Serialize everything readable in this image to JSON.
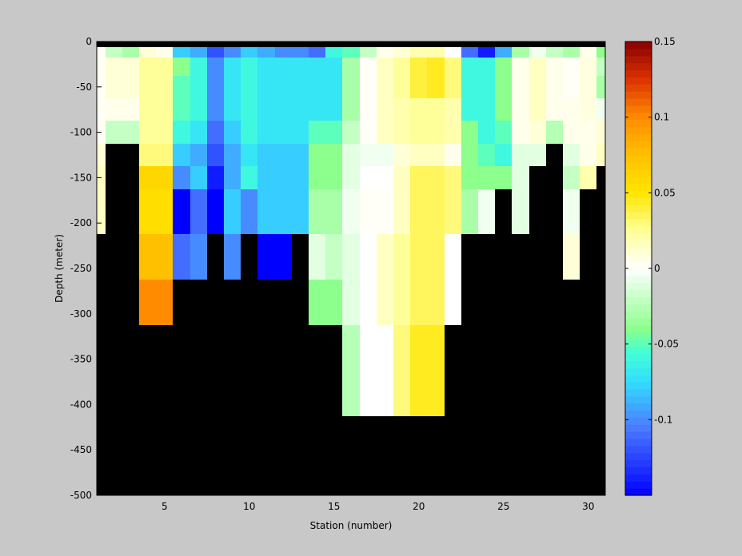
{
  "figure": {
    "background": "#c8c8c8",
    "mask_color": "#000000"
  },
  "chart_data": {
    "type": "heatmap",
    "title": "",
    "xlabel": "Station (number)",
    "ylabel": "Depth (meter)",
    "xlim": [
      1,
      31
    ],
    "ylim": [
      -500,
      0
    ],
    "xticks": [
      5,
      10,
      15,
      20,
      25,
      30
    ],
    "yticks": [
      0,
      -50,
      -100,
      -150,
      -200,
      -250,
      -300,
      -350,
      -400,
      -450,
      -500
    ],
    "grid": false,
    "colorbar": {
      "clim": [
        -0.15,
        0.15
      ],
      "ticks": [
        0.15,
        0.1,
        0.05,
        0,
        -0.05,
        -0.1
      ],
      "tick_labels": [
        "0.15",
        "0.1",
        "0.05",
        "0",
        "-0.05",
        "-0.1"
      ],
      "stops": [
        {
          "v": -0.15,
          "c": "#0000ff"
        },
        {
          "v": -0.105,
          "c": "#4a7bff"
        },
        {
          "v": -0.075,
          "c": "#33ddff"
        },
        {
          "v": -0.055,
          "c": "#44ffd4"
        },
        {
          "v": -0.04,
          "c": "#8cff8c"
        },
        {
          "v": -0.02,
          "c": "#c4ffc4"
        },
        {
          "v": 0.0,
          "c": "#ffffff"
        },
        {
          "v": 0.025,
          "c": "#ffff9a"
        },
        {
          "v": 0.05,
          "c": "#ffe600"
        },
        {
          "v": 0.075,
          "c": "#ffc000"
        },
        {
          "v": 0.1,
          "c": "#ff8c00"
        },
        {
          "v": 0.125,
          "c": "#dd3300"
        },
        {
          "v": 0.15,
          "c": "#880000"
        }
      ]
    },
    "stations": [
      1,
      2,
      3,
      4,
      5,
      6,
      7,
      8,
      9,
      10,
      11,
      12,
      13,
      14,
      15,
      16,
      17,
      18,
      19,
      20,
      21,
      22,
      23,
      24,
      25,
      26,
      27,
      28,
      29,
      30,
      31
    ],
    "depth_bins": [
      -2.5,
      -10,
      -25,
      -50,
      -75,
      -100,
      -125,
      -150,
      -175,
      -200,
      -225,
      -250,
      -275,
      -300,
      -325,
      -350,
      -375,
      -400,
      -425,
      -450,
      -475,
      -500
    ],
    "values": [
      [
        null,
        null,
        null,
        null,
        null,
        null,
        null,
        null,
        null,
        null,
        null,
        null,
        null,
        null,
        null,
        null,
        null,
        null,
        null,
        null,
        null,
        null,
        null,
        null,
        null,
        null,
        null,
        null,
        null,
        null,
        null
      ],
      [
        0.003,
        -0.02,
        -0.03,
        0.01,
        0.005,
        -0.08,
        -0.09,
        -0.12,
        -0.1,
        -0.08,
        -0.09,
        -0.1,
        -0.1,
        -0.11,
        -0.06,
        -0.05,
        -0.02,
        0.005,
        0.01,
        0.02,
        0.02,
        0.0,
        -0.11,
        -0.14,
        -0.09,
        -0.03,
        -0.005,
        -0.02,
        -0.03,
        0.005,
        -0.04
      ],
      [
        0.003,
        0.01,
        0.01,
        0.025,
        0.025,
        -0.04,
        -0.06,
        -0.1,
        -0.07,
        -0.06,
        -0.07,
        -0.07,
        -0.07,
        -0.07,
        -0.07,
        -0.03,
        0.002,
        0.015,
        0.025,
        0.04,
        0.045,
        0.03,
        -0.06,
        -0.06,
        -0.04,
        0.005,
        0.015,
        0.005,
        0.002,
        0.008,
        -0.02
      ],
      [
        0.003,
        0.01,
        0.01,
        0.025,
        0.025,
        -0.05,
        -0.06,
        -0.1,
        -0.07,
        -0.06,
        -0.07,
        -0.07,
        -0.07,
        -0.07,
        -0.07,
        -0.03,
        0.002,
        0.015,
        0.025,
        0.04,
        0.045,
        0.03,
        -0.06,
        -0.06,
        -0.04,
        0.005,
        0.015,
        0.005,
        0.002,
        0.008,
        -0.03
      ],
      [
        0.003,
        0.005,
        0.005,
        0.025,
        0.025,
        -0.05,
        -0.06,
        -0.1,
        -0.07,
        -0.06,
        -0.07,
        -0.07,
        -0.07,
        -0.07,
        -0.07,
        -0.03,
        0.002,
        0.015,
        0.02,
        0.025,
        0.025,
        0.02,
        -0.06,
        -0.06,
        -0.04,
        0.005,
        0.015,
        0.005,
        0.005,
        0.008,
        -0.005
      ],
      [
        0.003,
        -0.02,
        -0.02,
        0.025,
        0.025,
        -0.06,
        -0.07,
        -0.11,
        -0.08,
        -0.06,
        -0.07,
        -0.07,
        -0.07,
        -0.05,
        -0.05,
        -0.02,
        0.002,
        0.015,
        0.02,
        0.025,
        0.025,
        0.02,
        -0.04,
        -0.06,
        -0.05,
        0.005,
        0.01,
        -0.025,
        0.005,
        0.005,
        0.01
      ],
      [
        0.01,
        null,
        null,
        0.03,
        0.03,
        -0.08,
        -0.09,
        -0.12,
        -0.09,
        -0.07,
        -0.08,
        -0.08,
        -0.08,
        -0.04,
        -0.04,
        -0.01,
        -0.005,
        -0.005,
        0.01,
        0.015,
        0.015,
        0.005,
        -0.04,
        -0.05,
        -0.06,
        -0.01,
        -0.01,
        null,
        -0.01,
        0.005,
        0.015
      ],
      [
        0.015,
        null,
        null,
        0.06,
        0.06,
        -0.1,
        -0.08,
        -0.14,
        -0.09,
        -0.06,
        -0.08,
        -0.08,
        -0.08,
        -0.04,
        -0.04,
        -0.01,
        0.0,
        0.0,
        0.015,
        0.035,
        0.035,
        0.03,
        -0.04,
        -0.04,
        -0.04,
        -0.01,
        null,
        null,
        -0.02,
        0.02,
        null
      ],
      [
        0.015,
        null,
        null,
        0.055,
        0.055,
        -0.15,
        -0.11,
        -0.15,
        -0.08,
        -0.1,
        -0.08,
        -0.08,
        -0.08,
        -0.03,
        -0.03,
        -0.005,
        0.002,
        0.002,
        0.015,
        0.035,
        0.035,
        0.03,
        -0.03,
        -0.005,
        null,
        -0.01,
        null,
        null,
        -0.005,
        null,
        null
      ],
      [
        0.015,
        null,
        null,
        0.055,
        0.055,
        -0.15,
        -0.11,
        -0.15,
        -0.08,
        -0.1,
        -0.08,
        -0.08,
        -0.08,
        -0.03,
        -0.03,
        -0.005,
        0.002,
        0.002,
        0.015,
        0.035,
        0.035,
        0.03,
        -0.03,
        -0.005,
        null,
        -0.01,
        null,
        null,
        -0.005,
        null,
        null
      ],
      [
        null,
        null,
        null,
        0.075,
        0.075,
        -0.11,
        -0.1,
        null,
        -0.1,
        null,
        -0.15,
        -0.15,
        null,
        -0.01,
        -0.02,
        -0.01,
        0.0,
        0.015,
        0.025,
        0.035,
        0.035,
        0.0,
        null,
        null,
        null,
        null,
        null,
        null,
        0.01,
        null,
        null
      ],
      [
        null,
        null,
        null,
        0.075,
        0.075,
        -0.11,
        -0.1,
        null,
        -0.1,
        null,
        -0.15,
        -0.15,
        null,
        -0.01,
        -0.02,
        -0.01,
        0.0,
        0.015,
        0.025,
        0.035,
        0.035,
        0.0,
        null,
        null,
        null,
        null,
        null,
        null,
        0.01,
        null,
        null
      ],
      [
        null,
        null,
        null,
        0.1,
        0.1,
        null,
        null,
        null,
        null,
        null,
        null,
        null,
        null,
        -0.04,
        -0.04,
        -0.01,
        0.0,
        0.015,
        0.025,
        0.035,
        0.035,
        0.0,
        null,
        null,
        null,
        null,
        null,
        null,
        null,
        null,
        null
      ],
      [
        null,
        null,
        null,
        0.1,
        0.1,
        null,
        null,
        null,
        null,
        null,
        null,
        null,
        null,
        -0.04,
        -0.04,
        -0.01,
        0.0,
        0.015,
        0.025,
        0.035,
        0.035,
        0.0,
        null,
        null,
        null,
        null,
        null,
        null,
        null,
        null,
        null
      ],
      [
        null,
        null,
        null,
        null,
        null,
        null,
        null,
        null,
        null,
        null,
        null,
        null,
        null,
        null,
        null,
        -0.025,
        0.0,
        0.0,
        0.03,
        0.045,
        0.045,
        null,
        null,
        null,
        null,
        null,
        null,
        null,
        null,
        null,
        null
      ],
      [
        null,
        null,
        null,
        null,
        null,
        null,
        null,
        null,
        null,
        null,
        null,
        null,
        null,
        null,
        null,
        -0.025,
        0.0,
        0.0,
        0.03,
        0.045,
        0.045,
        null,
        null,
        null,
        null,
        null,
        null,
        null,
        null,
        null,
        null
      ],
      [
        null,
        null,
        null,
        null,
        null,
        null,
        null,
        null,
        null,
        null,
        null,
        null,
        null,
        null,
        null,
        -0.025,
        0.0,
        0.0,
        0.03,
        0.045,
        0.045,
        null,
        null,
        null,
        null,
        null,
        null,
        null,
        null,
        null,
        null
      ],
      [
        null,
        null,
        null,
        null,
        null,
        null,
        null,
        null,
        null,
        null,
        null,
        null,
        null,
        null,
        null,
        -0.025,
        0.0,
        0.0,
        0.03,
        0.045,
        0.045,
        null,
        null,
        null,
        null,
        null,
        null,
        null,
        null,
        null,
        null
      ],
      [
        null,
        null,
        null,
        null,
        null,
        null,
        null,
        null,
        null,
        null,
        null,
        null,
        null,
        null,
        null,
        null,
        null,
        null,
        null,
        null,
        null,
        null,
        null,
        null,
        null,
        null,
        null,
        null,
        null,
        null,
        null
      ],
      [
        null,
        null,
        null,
        null,
        null,
        null,
        null,
        null,
        null,
        null,
        null,
        null,
        null,
        null,
        null,
        null,
        null,
        null,
        null,
        null,
        null,
        null,
        null,
        null,
        null,
        null,
        null,
        null,
        null,
        null,
        null
      ],
      [
        null,
        null,
        null,
        null,
        null,
        null,
        null,
        null,
        null,
        null,
        null,
        null,
        null,
        null,
        null,
        null,
        null,
        null,
        null,
        null,
        null,
        null,
        null,
        null,
        null,
        null,
        null,
        null,
        null,
        null,
        null
      ],
      [
        null,
        null,
        null,
        null,
        null,
        null,
        null,
        null,
        null,
        null,
        null,
        null,
        null,
        null,
        null,
        null,
        null,
        null,
        null,
        null,
        null,
        null,
        null,
        null,
        null,
        null,
        null,
        null,
        null,
        null,
        null
      ]
    ]
  }
}
